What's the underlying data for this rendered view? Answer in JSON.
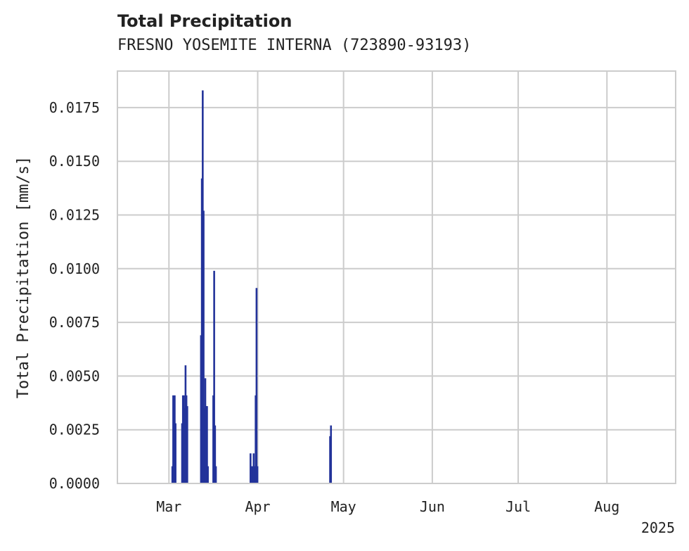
{
  "chart_data": {
    "type": "bar",
    "title": "Total Precipitation",
    "subtitle": "FRESNO YOSEMITE INTERNA (723890-93193)",
    "xlabel": "",
    "ylabel": "Total Precipitation [mm/s]",
    "ylim": [
      0,
      0.0192
    ],
    "yticks": [
      {
        "value": 0,
        "label": "0.0000"
      },
      {
        "value": 0.0025,
        "label": "0.0025"
      },
      {
        "value": 0.005,
        "label": "0.0050"
      },
      {
        "value": 0.0075,
        "label": "0.0075"
      },
      {
        "value": 0.01,
        "label": "0.0100"
      },
      {
        "value": 0.0125,
        "label": "0.0125"
      },
      {
        "value": 0.015,
        "label": "0.0150"
      },
      {
        "value": 0.0175,
        "label": "0.0175"
      }
    ],
    "xlim_day_of_year": [
      42,
      237
    ],
    "xticks": [
      {
        "day": 60,
        "label": "Mar"
      },
      {
        "day": 91,
        "label": "Apr"
      },
      {
        "day": 121,
        "label": "May"
      },
      {
        "day": 152,
        "label": "Jun"
      },
      {
        "day": 182,
        "label": "Jul"
      },
      {
        "day": 213,
        "label": "Aug"
      }
    ],
    "year_label": "2025",
    "grid": true,
    "color": "#23339a",
    "series": [
      {
        "name": "Total Precipitation",
        "points": [
          {
            "day": 61.2,
            "value": 0.0008
          },
          {
            "day": 61.5,
            "value": 0.0041
          },
          {
            "day": 62.0,
            "value": 0.0041
          },
          {
            "day": 62.3,
            "value": 0.0028
          },
          {
            "day": 64.6,
            "value": 0.0028
          },
          {
            "day": 64.9,
            "value": 0.0041
          },
          {
            "day": 65.2,
            "value": 0.0041
          },
          {
            "day": 65.5,
            "value": 0.0035
          },
          {
            "day": 65.8,
            "value": 0.0055
          },
          {
            "day": 66.1,
            "value": 0.0041
          },
          {
            "day": 66.4,
            "value": 0.0036
          },
          {
            "day": 71.2,
            "value": 0.0069
          },
          {
            "day": 71.5,
            "value": 0.0142
          },
          {
            "day": 71.8,
            "value": 0.0183
          },
          {
            "day": 72.1,
            "value": 0.0127
          },
          {
            "day": 72.4,
            "value": 0.0035
          },
          {
            "day": 72.7,
            "value": 0.0049
          },
          {
            "day": 73.0,
            "value": 0.0036
          },
          {
            "day": 73.3,
            "value": 0.0036
          },
          {
            "day": 73.6,
            "value": 0.0008
          },
          {
            "day": 75.5,
            "value": 0.0041
          },
          {
            "day": 75.8,
            "value": 0.0099
          },
          {
            "day": 76.1,
            "value": 0.0027
          },
          {
            "day": 76.4,
            "value": 0.0008
          },
          {
            "day": 88.5,
            "value": 0.0014
          },
          {
            "day": 88.8,
            "value": 0.0008
          },
          {
            "day": 89.3,
            "value": 0.0008
          },
          {
            "day": 89.6,
            "value": 0.0014
          },
          {
            "day": 90.0,
            "value": 0.0008
          },
          {
            "day": 90.3,
            "value": 0.0041
          },
          {
            "day": 90.6,
            "value": 0.0091
          },
          {
            "day": 90.9,
            "value": 0.0008
          },
          {
            "day": 116.3,
            "value": 0.0022
          },
          {
            "day": 116.6,
            "value": 0.0027
          }
        ]
      }
    ]
  }
}
